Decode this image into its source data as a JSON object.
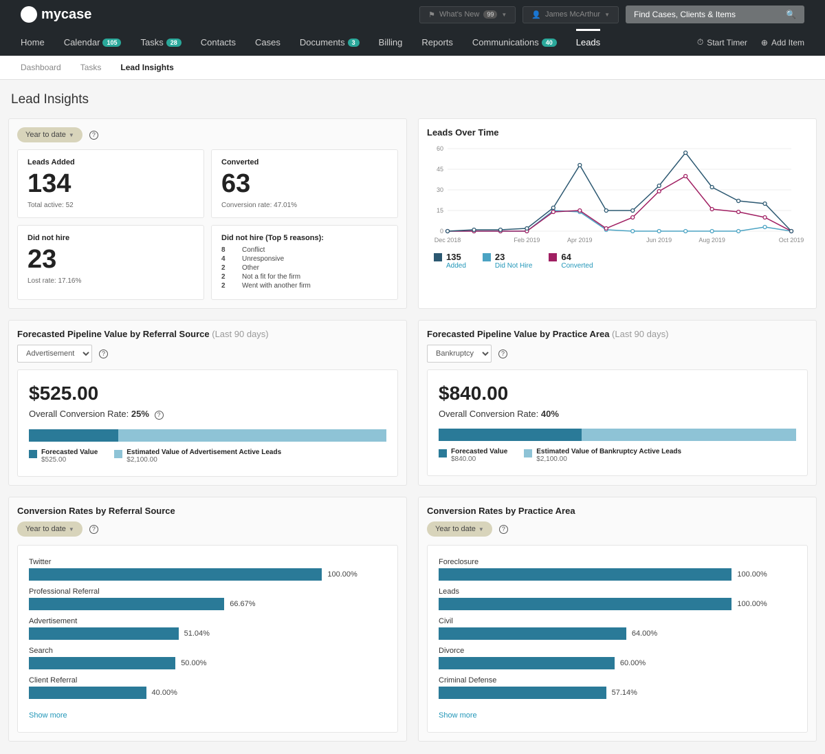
{
  "header": {
    "logo_text": "mycase",
    "whats_new_label": "What's New",
    "whats_new_badge": "99",
    "user_name": "James McArthur",
    "search_placeholder": "Find Cases, Clients & Items",
    "start_timer": "Start Timer",
    "add_item": "Add Item"
  },
  "nav": {
    "items": [
      {
        "label": "Home",
        "badge": null
      },
      {
        "label": "Calendar",
        "badge": "105"
      },
      {
        "label": "Tasks",
        "badge": "28"
      },
      {
        "label": "Contacts",
        "badge": null
      },
      {
        "label": "Cases",
        "badge": null
      },
      {
        "label": "Documents",
        "badge": "3"
      },
      {
        "label": "Billing",
        "badge": null
      },
      {
        "label": "Reports",
        "badge": null
      },
      {
        "label": "Communications",
        "badge": "40"
      },
      {
        "label": "Leads",
        "badge": null,
        "active": true
      }
    ]
  },
  "subnav": {
    "items": [
      {
        "label": "Dashboard"
      },
      {
        "label": "Tasks"
      },
      {
        "label": "Lead Insights",
        "active": true
      }
    ]
  },
  "page_title": "Lead Insights",
  "date_filter": "Year to date",
  "stats": {
    "leads_added": {
      "label": "Leads Added",
      "value": "134",
      "sub": "Total active: 52"
    },
    "converted": {
      "label": "Converted",
      "value": "63",
      "sub": "Conversion rate: 47.01%"
    },
    "did_not_hire": {
      "label": "Did not hire",
      "value": "23",
      "sub": "Lost rate: 17.16%"
    },
    "reasons": {
      "label": "Did not hire (Top 5 reasons):",
      "rows": [
        {
          "count": "8",
          "reason": "Conflict"
        },
        {
          "count": "4",
          "reason": "Unresponsive"
        },
        {
          "count": "2",
          "reason": "Other"
        },
        {
          "count": "2",
          "reason": "Not a fit for the firm"
        },
        {
          "count": "2",
          "reason": "Went with another firm"
        }
      ]
    }
  },
  "leads_over_time": {
    "title": "Leads Over Time",
    "y_ticks": [
      0,
      15,
      30,
      45,
      60
    ],
    "x_labels": [
      "Dec 2018",
      "Feb 2019",
      "Apr 2019",
      "Jun 2019",
      "Aug 2019",
      "Oct 2019"
    ],
    "colors": {
      "added": "#2c5871",
      "did_not_hire": "#4ba3c3",
      "converted": "#a01f62"
    },
    "series": {
      "added": [
        0,
        1,
        1,
        2,
        17,
        48,
        15,
        15,
        33,
        57,
        32,
        22,
        20,
        0
      ],
      "did_not_hire": [
        0,
        0,
        0,
        0,
        15,
        14,
        1,
        0,
        0,
        0,
        0,
        0,
        3,
        0
      ],
      "converted": [
        0,
        0,
        0,
        0,
        14,
        15,
        2,
        10,
        29,
        40,
        16,
        14,
        10,
        0
      ]
    },
    "legend": [
      {
        "num": "135",
        "label": "Added",
        "color": "#2c5871"
      },
      {
        "num": "23",
        "label": "Did Not Hire",
        "color": "#4ba3c3"
      },
      {
        "num": "64",
        "label": "Converted",
        "color": "#a01f62"
      }
    ]
  },
  "pipeline_referral": {
    "title": "Forecasted Pipeline Value by Referral Source",
    "subtitle": "(Last 90 days)",
    "select": "Advertisement",
    "amount": "$525.00",
    "conv_label": "Overall Conversion Rate:",
    "conv_rate": "25%",
    "segments": [
      {
        "color": "#2a7a98",
        "width": 25
      },
      {
        "color": "#8ec3d6",
        "width": 75
      }
    ],
    "legend": [
      {
        "color": "#2a7a98",
        "label": "Forecasted Value",
        "val": "$525.00"
      },
      {
        "color": "#8ec3d6",
        "label": "Estimated Value of Advertisement Active Leads",
        "val": "$2,100.00"
      }
    ]
  },
  "pipeline_practice": {
    "title": "Forecasted Pipeline Value by Practice Area",
    "subtitle": "(Last 90 days)",
    "select": "Bankruptcy",
    "amount": "$840.00",
    "conv_label": "Overall Conversion Rate:",
    "conv_rate": "40%",
    "segments": [
      {
        "color": "#2a7a98",
        "width": 40
      },
      {
        "color": "#8ec3d6",
        "width": 60
      }
    ],
    "legend": [
      {
        "color": "#2a7a98",
        "label": "Forecasted Value",
        "val": "$840.00"
      },
      {
        "color": "#8ec3d6",
        "label": "Estimated Value of Bankruptcy Active Leads",
        "val": "$2,100.00"
      }
    ]
  },
  "conv_referral": {
    "title": "Conversion Rates by Referral Source",
    "filter": "Year to date",
    "bars": [
      {
        "label": "Twitter",
        "pct": 100.0
      },
      {
        "label": "Professional Referral",
        "pct": 66.67
      },
      {
        "label": "Advertisement",
        "pct": 51.04
      },
      {
        "label": "Search",
        "pct": 50.0
      },
      {
        "label": "Client Referral",
        "pct": 40.0
      }
    ],
    "bar_color": "#2a7a98",
    "show_more": "Show more"
  },
  "conv_practice": {
    "title": "Conversion Rates by Practice Area",
    "filter": "Year to date",
    "bars": [
      {
        "label": "Foreclosure",
        "pct": 100.0
      },
      {
        "label": "Leads",
        "pct": 100.0
      },
      {
        "label": "Civil",
        "pct": 64.0
      },
      {
        "label": "Divorce",
        "pct": 60.0
      },
      {
        "label": "Criminal Defense",
        "pct": 57.14
      }
    ],
    "bar_color": "#2a7a98",
    "show_more": "Show more"
  }
}
